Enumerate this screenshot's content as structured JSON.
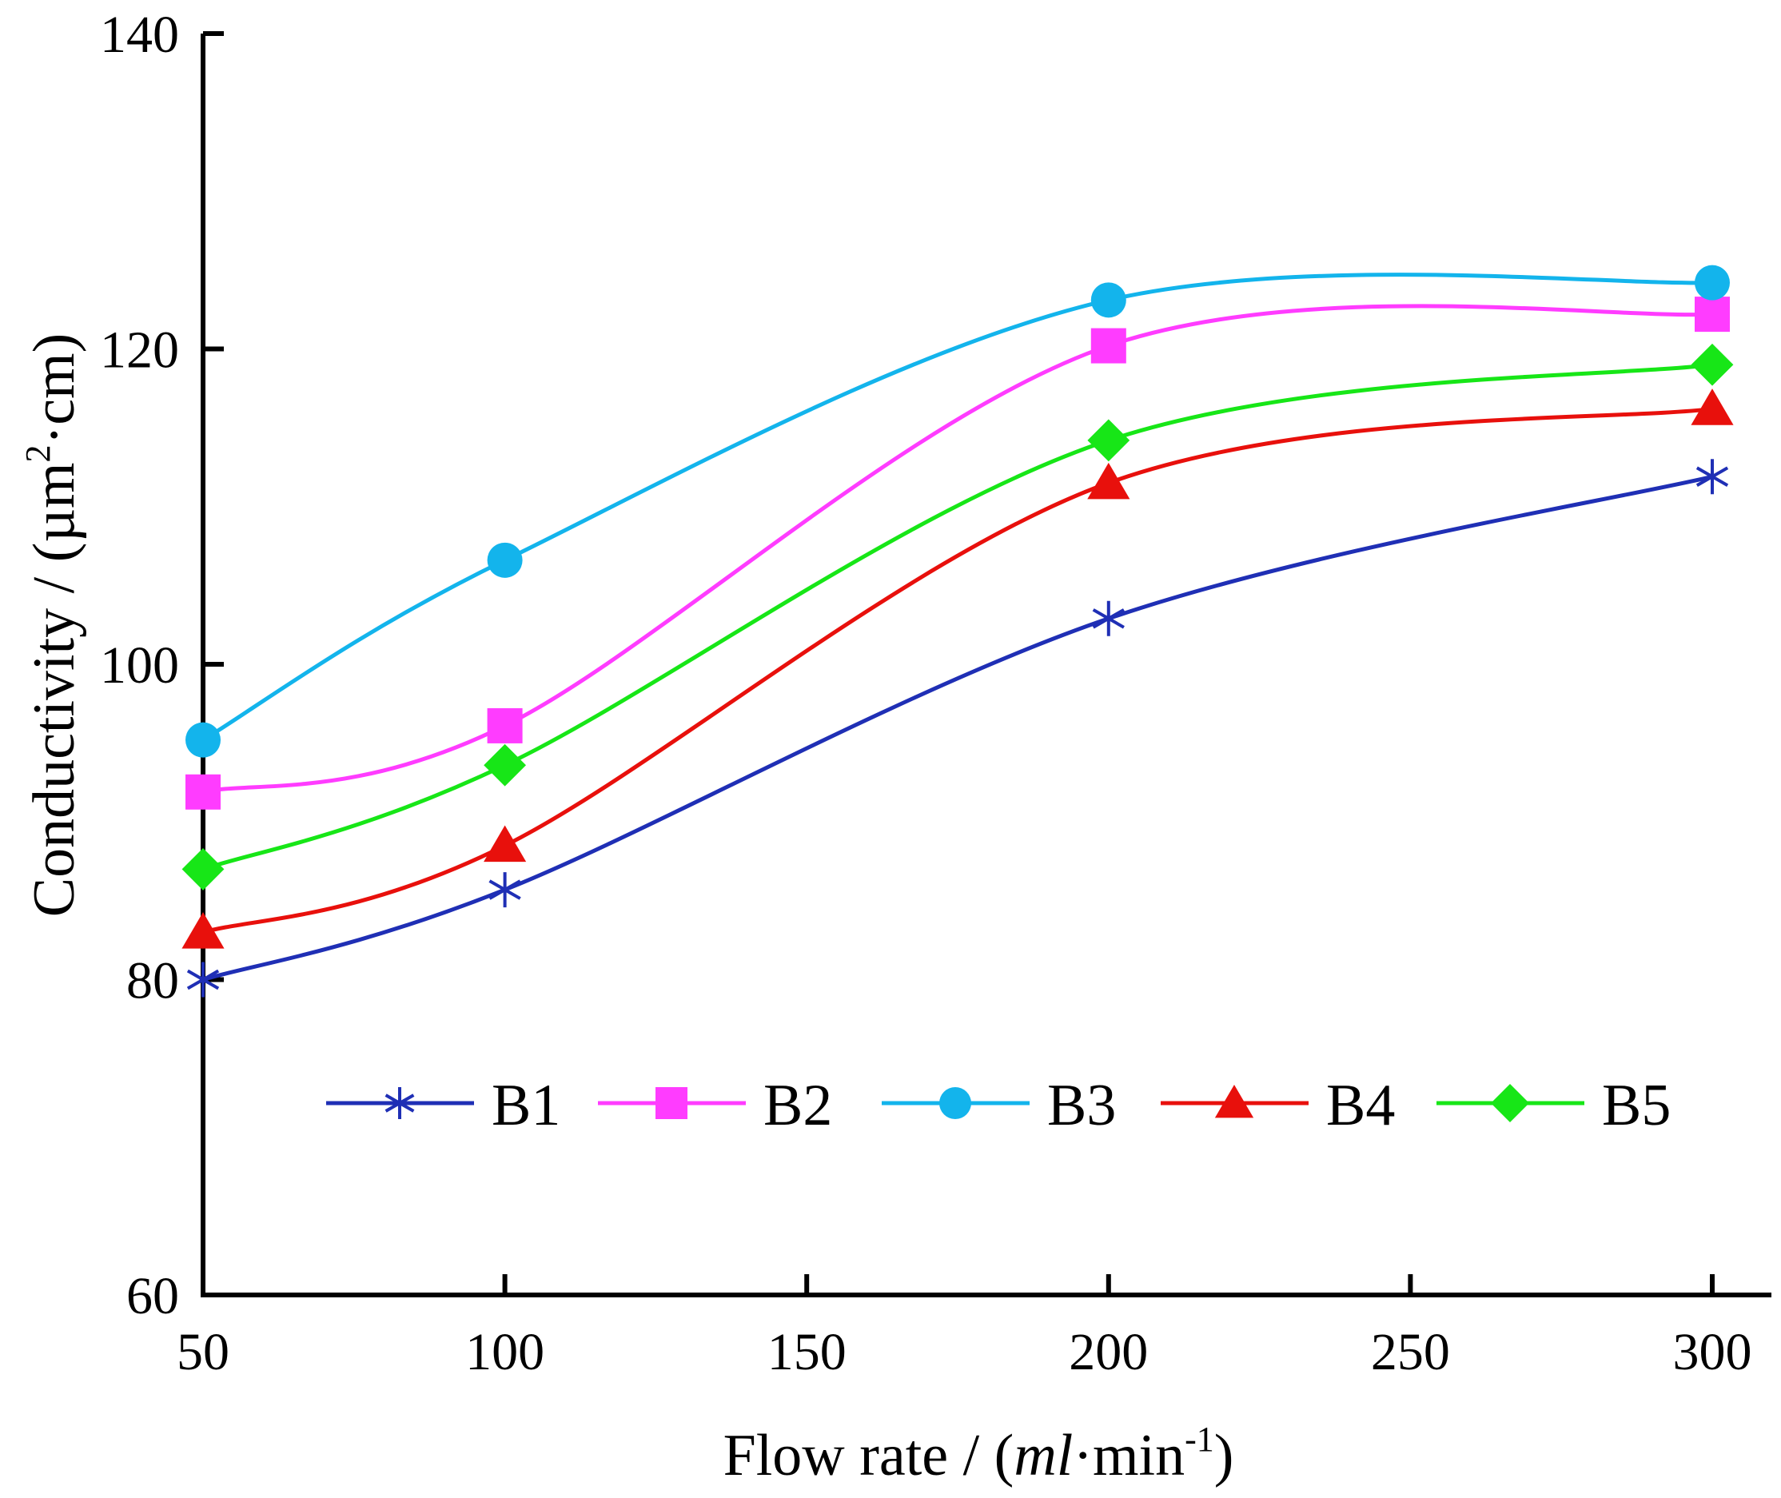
{
  "chart_data": {
    "type": "line",
    "title": "",
    "xlabel": {
      "prefix": "Flow rate / (",
      "italic": "ml",
      "middle": "·min",
      "sup": "-1",
      "suffix": ")"
    },
    "ylabel": {
      "prefix": "Conductivity / (µm",
      "sup": "2",
      "suffix": "·cm)"
    },
    "xlim": [
      50,
      300
    ],
    "ylim": [
      60,
      140
    ],
    "xticks": [
      50,
      100,
      150,
      200,
      250,
      300
    ],
    "yticks": [
      60,
      80,
      100,
      120,
      140
    ],
    "x": [
      50,
      100,
      200,
      300
    ],
    "legend_position": "bottom-center",
    "grid": false,
    "series": [
      {
        "name": "B1",
        "color": "#1f2fb5",
        "marker": "asterisk",
        "values": [
          80.0,
          85.7,
          102.9,
          111.9
        ]
      },
      {
        "name": "B2",
        "color": "#ff3cff",
        "marker": "square",
        "values": [
          91.9,
          96.1,
          120.2,
          122.2
        ]
      },
      {
        "name": "B3",
        "color": "#13b4ec",
        "marker": "circle",
        "values": [
          95.2,
          106.6,
          123.1,
          124.2
        ]
      },
      {
        "name": "B4",
        "color": "#e8100c",
        "marker": "triangle",
        "values": [
          83.0,
          88.5,
          111.5,
          116.2
        ]
      },
      {
        "name": "B5",
        "color": "#17e617",
        "marker": "diamond",
        "values": [
          87.0,
          93.6,
          114.2,
          119.0
        ]
      }
    ]
  }
}
